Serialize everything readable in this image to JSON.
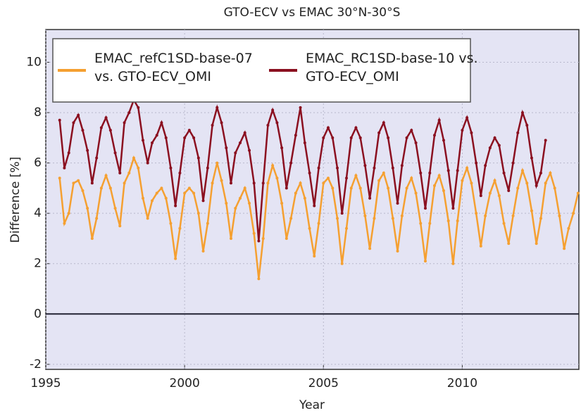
{
  "chart_data": {
    "type": "line",
    "title": "GTO-ECV vs EMAC 30°N-30°S",
    "xlabel": "Year",
    "ylabel": "Difference [%]",
    "x": [
      1995.5,
      1995.67,
      1995.83,
      1996,
      1996.17,
      1996.33,
      1996.5,
      1996.67,
      1996.83,
      1997,
      1997.17,
      1997.33,
      1997.5,
      1997.67,
      1997.83,
      1998,
      1998.17,
      1998.33,
      1998.5,
      1998.67,
      1998.83,
      1999,
      1999.17,
      1999.33,
      1999.5,
      1999.67,
      1999.83,
      2000,
      2000.17,
      2000.33,
      2000.5,
      2000.67,
      2000.83,
      2001,
      2001.17,
      2001.33,
      2001.5,
      2001.67,
      2001.83,
      2002,
      2002.17,
      2002.33,
      2002.5,
      2002.67,
      2002.83,
      2003,
      2003.17,
      2003.33,
      2003.5,
      2003.67,
      2003.83,
      2004,
      2004.17,
      2004.33,
      2004.5,
      2004.67,
      2004.83,
      2005,
      2005.17,
      2005.33,
      2005.5,
      2005.67,
      2005.83,
      2006,
      2006.17,
      2006.33,
      2006.5,
      2006.67,
      2006.83,
      2007,
      2007.17,
      2007.33,
      2007.5,
      2007.67,
      2007.83,
      2008,
      2008.17,
      2008.33,
      2008.5,
      2008.67,
      2008.83,
      2009,
      2009.17,
      2009.33,
      2009.5,
      2009.67,
      2009.83,
      2010,
      2010.17,
      2010.33,
      2010.5,
      2010.67,
      2010.83,
      2011,
      2011.17,
      2011.33,
      2011.5,
      2011.67,
      2011.83,
      2012,
      2012.17,
      2012.33,
      2012.5,
      2012.67,
      2012.83,
      2013,
      2013.17,
      2013.33,
      2013.5,
      2013.67,
      2013.83,
      2014,
      2014.17
    ],
    "series": [
      {
        "name": "EMAC_refC1SD-base-07 vs. GTO-ECV_OMI",
        "color": "#f5a031",
        "values": [
          5.4,
          3.6,
          4.0,
          5.2,
          5.3,
          4.9,
          4.2,
          3.0,
          3.8,
          5.0,
          5.5,
          5.0,
          4.2,
          3.5,
          5.2,
          5.6,
          6.2,
          5.8,
          4.6,
          3.8,
          4.5,
          4.8,
          5.0,
          4.6,
          3.6,
          2.2,
          3.4,
          4.8,
          5.0,
          4.8,
          4.0,
          2.5,
          3.6,
          5.2,
          6.0,
          5.3,
          4.4,
          3.0,
          4.2,
          4.6,
          5.0,
          4.4,
          3.2,
          1.4,
          3.0,
          5.2,
          5.9,
          5.4,
          4.4,
          3.0,
          3.8,
          4.8,
          5.2,
          4.6,
          3.4,
          2.3,
          3.6,
          5.2,
          5.4,
          5.0,
          3.8,
          2.0,
          3.4,
          5.0,
          5.5,
          5.0,
          3.9,
          2.6,
          3.8,
          5.3,
          5.6,
          5.0,
          3.8,
          2.5,
          3.9,
          5.0,
          5.4,
          4.8,
          3.6,
          2.1,
          3.6,
          5.1,
          5.5,
          4.9,
          3.7,
          2.0,
          3.7,
          5.3,
          5.8,
          5.2,
          4.0,
          2.7,
          3.9,
          4.8,
          5.3,
          4.7,
          3.6,
          2.8,
          3.9,
          5.0,
          5.7,
          5.2,
          4.1,
          2.8,
          3.8,
          5.2,
          5.6,
          5.0,
          3.9,
          2.6,
          3.4,
          4.0,
          4.8
        ]
      },
      {
        "name": "EMAC_RC1SD-base-10 vs. GTO-ECV_OMI",
        "color": "#8b1020",
        "values": [
          7.7,
          5.8,
          6.4,
          7.6,
          7.9,
          7.3,
          6.5,
          5.2,
          6.2,
          7.4,
          7.8,
          7.3,
          6.4,
          5.6,
          7.6,
          8.0,
          8.5,
          8.2,
          6.9,
          6.0,
          6.8,
          7.1,
          7.6,
          7.0,
          5.8,
          4.3,
          5.6,
          7.0,
          7.3,
          7.0,
          6.2,
          4.5,
          5.8,
          7.5,
          8.2,
          7.6,
          6.6,
          5.2,
          6.4,
          6.8,
          7.2,
          6.5,
          5.2,
          2.9,
          5.2,
          7.5,
          8.1,
          7.6,
          6.6,
          5.0,
          6.0,
          7.1,
          8.2,
          6.8,
          5.6,
          4.3,
          5.8,
          7.0,
          7.4,
          7.0,
          5.8,
          4.0,
          5.4,
          7.0,
          7.4,
          7.0,
          5.9,
          4.6,
          5.8,
          7.2,
          7.6,
          7.0,
          5.8,
          4.4,
          5.9,
          7.0,
          7.3,
          6.8,
          5.6,
          4.2,
          5.6,
          7.1,
          7.7,
          6.9,
          5.7,
          4.2,
          5.7,
          7.3,
          7.8,
          7.2,
          6.0,
          4.7,
          5.9,
          6.6,
          7.0,
          6.7,
          5.6,
          4.9,
          6.0,
          7.2,
          8.0,
          7.5,
          6.2,
          5.1,
          5.6,
          6.9,
          null,
          null,
          null,
          null,
          null,
          null,
          null
        ]
      }
    ],
    "xlim": [
      1995,
      2014.2
    ],
    "xticks": [
      1995,
      2000,
      2005,
      2010
    ],
    "ylim": [
      -2.2,
      11.3
    ],
    "yticks": [
      -2,
      0,
      2,
      4,
      6,
      8,
      10
    ],
    "hline": 0,
    "grid": true,
    "legend": "upper left"
  }
}
